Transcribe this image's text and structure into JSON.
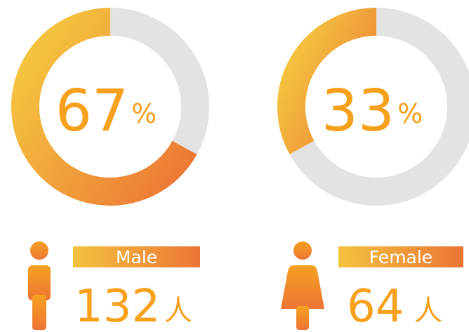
{
  "chart_data": [
    {
      "type": "donut",
      "values": [
        67,
        33
      ],
      "colors": [
        "#ec7535",
        "#e3e3e3"
      ],
      "unit": "%",
      "category": "Male",
      "count": 132,
      "count_unit": "人"
    },
    {
      "type": "donut",
      "values": [
        33,
        67
      ],
      "colors": [
        "#ec7535",
        "#e3e3e3"
      ],
      "unit": "%",
      "category": "Female",
      "count": 64,
      "count_unit": "人"
    }
  ]
}
